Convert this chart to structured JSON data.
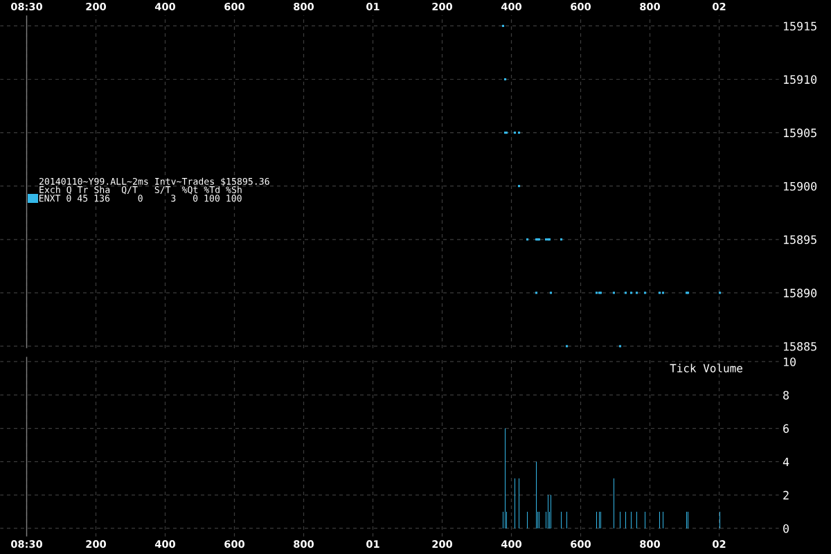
{
  "chart_data": [
    {
      "type": "scatter",
      "title": "20140110~Y99.ALL~2ms Intv~Trades $15895.36",
      "legend_title": "Exch Q Tr Sha  Q/T   S/T  %Qt %Td %Sh",
      "legend": "left",
      "marker": "square",
      "grid": true,
      "xlim": [
        "2014-01-10T08:29:59.923",
        "2014-01-10T08:30:02.173"
      ],
      "xticks": [
        {
          "value": "2014-01-10T08:30:00",
          "label": "08:30"
        },
        {
          "value": "2014-01-10T08:30:00.200",
          "label": "200"
        },
        {
          "value": "2014-01-10T08:30:00.400",
          "label": "400"
        },
        {
          "value": "2014-01-10T08:30:00.600",
          "label": "600"
        },
        {
          "value": "2014-01-10T08:30:00.800",
          "label": "800"
        },
        {
          "value": "2014-01-10T08:30:01",
          "label": "01"
        },
        {
          "value": "2014-01-10T08:30:01.200",
          "label": "200"
        },
        {
          "value": "2014-01-10T08:30:01.400",
          "label": "400"
        },
        {
          "value": "2014-01-10T08:30:01.600",
          "label": "600"
        },
        {
          "value": "2014-01-10T08:30:01.800",
          "label": "800"
        },
        {
          "value": "2014-01-10T08:30:02",
          "label": "02"
        }
      ],
      "ylim": [
        15884.8,
        15916.0
      ],
      "yticks": [
        15885,
        15890,
        15895,
        15900,
        15905,
        15910,
        15915
      ],
      "ref_lines": [
        {
          "axis": "x",
          "value": "2014-01-10T08:30:00",
          "color": "#808080"
        }
      ],
      "series": [
        {
          "name": "ENXT 0 45 136     0     3   0 100 100",
          "color": "#35b9ea",
          "x": [
            "2014-01-10T08:30:01.376",
            "2014-01-10T08:30:01.382",
            "2014-01-10T08:30:01.382",
            "2014-01-10T08:30:01.386",
            "2014-01-10T08:30:01.410",
            "2014-01-10T08:30:01.422",
            "2014-01-10T08:30:01.422",
            "2014-01-10T08:30:01.446",
            "2014-01-10T08:30:01.472",
            "2014-01-10T08:30:01.476",
            "2014-01-10T08:30:01.480",
            "2014-01-10T08:30:01.472",
            "2014-01-10T08:30:01.500",
            "2014-01-10T08:30:01.506",
            "2014-01-10T08:30:01.510",
            "2014-01-10T08:30:01.514",
            "2014-01-10T08:30:01.544",
            "2014-01-10T08:30:01.560",
            "2014-01-10T08:30:01.646",
            "2014-01-10T08:30:01.654",
            "2014-01-10T08:30:01.658",
            "2014-01-10T08:30:01.696",
            "2014-01-10T08:30:01.714",
            "2014-01-10T08:30:01.730",
            "2014-01-10T08:30:01.746",
            "2014-01-10T08:30:01.762",
            "2014-01-10T08:30:01.786",
            "2014-01-10T08:30:01.828",
            "2014-01-10T08:30:01.838",
            "2014-01-10T08:30:01.906",
            "2014-01-10T08:30:01.910",
            "2014-01-10T08:30:02.002"
          ],
          "values": [
            15915,
            15910,
            15905,
            15905,
            15905,
            15905,
            15900,
            15895,
            15895,
            15895,
            15895,
            15890,
            15895,
            15895,
            15895,
            15890,
            15895,
            15885,
            15890,
            15890,
            15890,
            15890,
            15885,
            15890,
            15890,
            15890,
            15890,
            15890,
            15890,
            15890,
            15890,
            15890
          ]
        }
      ]
    },
    {
      "type": "bar",
      "title": "Tick Volume",
      "grid": true,
      "xlim": [
        "2014-01-10T08:29:59.923",
        "2014-01-10T08:30:02.173"
      ],
      "xticks": [
        {
          "value": "2014-01-10T08:30:00",
          "label": "08:30"
        },
        {
          "value": "2014-01-10T08:30:00.200",
          "label": "200"
        },
        {
          "value": "2014-01-10T08:30:00.400",
          "label": "400"
        },
        {
          "value": "2014-01-10T08:30:00.600",
          "label": "600"
        },
        {
          "value": "2014-01-10T08:30:00.800",
          "label": "800"
        },
        {
          "value": "2014-01-10T08:30:01",
          "label": "01"
        },
        {
          "value": "2014-01-10T08:30:01.200",
          "label": "200"
        },
        {
          "value": "2014-01-10T08:30:01.400",
          "label": "400"
        },
        {
          "value": "2014-01-10T08:30:01.600",
          "label": "600"
        },
        {
          "value": "2014-01-10T08:30:01.800",
          "label": "800"
        },
        {
          "value": "2014-01-10T08:30:02",
          "label": "02"
        }
      ],
      "ylim": [
        -0.5,
        10.3
      ],
      "yticks": [
        0,
        2,
        4,
        6,
        8,
        10
      ],
      "ref_lines": [
        {
          "axis": "x",
          "value": "2014-01-10T08:30:00",
          "color": "#808080"
        }
      ],
      "series": [
        {
          "color": "#35b9ea",
          "x": [
            "2014-01-10T08:30:01.376",
            "2014-01-10T08:30:01.382",
            "2014-01-10T08:30:01.386",
            "2014-01-10T08:30:01.410",
            "2014-01-10T08:30:01.422",
            "2014-01-10T08:30:01.446",
            "2014-01-10T08:30:01.472",
            "2014-01-10T08:30:01.476",
            "2014-01-10T08:30:01.480",
            "2014-01-10T08:30:01.500",
            "2014-01-10T08:30:01.506",
            "2014-01-10T08:30:01.510",
            "2014-01-10T08:30:01.514",
            "2014-01-10T08:30:01.544",
            "2014-01-10T08:30:01.560",
            "2014-01-10T08:30:01.646",
            "2014-01-10T08:30:01.654",
            "2014-01-10T08:30:01.658",
            "2014-01-10T08:30:01.696",
            "2014-01-10T08:30:01.714",
            "2014-01-10T08:30:01.730",
            "2014-01-10T08:30:01.746",
            "2014-01-10T08:30:01.762",
            "2014-01-10T08:30:01.786",
            "2014-01-10T08:30:01.828",
            "2014-01-10T08:30:01.838",
            "2014-01-10T08:30:01.906",
            "2014-01-10T08:30:01.910",
            "2014-01-10T08:30:02.002"
          ],
          "values": [
            1,
            6,
            1,
            3,
            3,
            1,
            4,
            1,
            1,
            1,
            2,
            1,
            2,
            1,
            1,
            1,
            1,
            1,
            3,
            1,
            1,
            1,
            1,
            1,
            1,
            1,
            1,
            1,
            1
          ]
        }
      ]
    }
  ]
}
